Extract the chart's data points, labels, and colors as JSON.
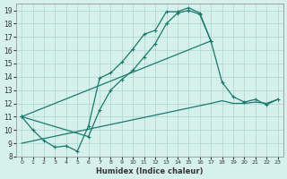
{
  "xlabel": "Humidex (Indice chaleur)",
  "bg_color": "#d6f0ec",
  "grid_color": "#aed4ce",
  "line_color": "#1a7a6e",
  "xlim": [
    -0.5,
    23.5
  ],
  "ylim": [
    8,
    19.5
  ],
  "xticks": [
    0,
    1,
    2,
    3,
    4,
    5,
    6,
    7,
    8,
    9,
    10,
    11,
    12,
    13,
    14,
    15,
    16,
    17,
    18,
    19,
    20,
    21,
    22,
    23
  ],
  "yticks": [
    8,
    9,
    10,
    11,
    12,
    13,
    14,
    15,
    16,
    17,
    18,
    19
  ],
  "curve1_x": [
    0,
    1,
    2,
    3,
    4,
    5,
    6,
    7,
    8,
    9,
    10,
    11,
    12,
    13,
    14,
    15,
    16,
    17
  ],
  "curve1_y": [
    11.0,
    10.0,
    9.2,
    8.7,
    8.8,
    8.4,
    10.3,
    13.9,
    14.3,
    15.1,
    16.1,
    17.2,
    17.5,
    18.9,
    18.9,
    19.2,
    18.8,
    16.7
  ],
  "curve2_x": [
    0,
    6,
    7,
    8,
    9,
    10,
    11,
    12,
    13,
    14,
    15,
    16,
    17
  ],
  "curve2_y": [
    11.0,
    9.5,
    11.5,
    13.0,
    13.8,
    14.5,
    15.5,
    16.5,
    18.0,
    18.8,
    19.0,
    18.7,
    16.7
  ],
  "line3_x": [
    0,
    17,
    18,
    19,
    20,
    21,
    22,
    23
  ],
  "line3_y": [
    11.0,
    16.7,
    13.6,
    12.5,
    12.1,
    12.3,
    11.9,
    12.3
  ],
  "line4_x": [
    0,
    17,
    18,
    19,
    20,
    21,
    22,
    23
  ],
  "line4_y": [
    9.0,
    12.0,
    12.2,
    12.0,
    12.0,
    12.1,
    12.0,
    12.3
  ]
}
